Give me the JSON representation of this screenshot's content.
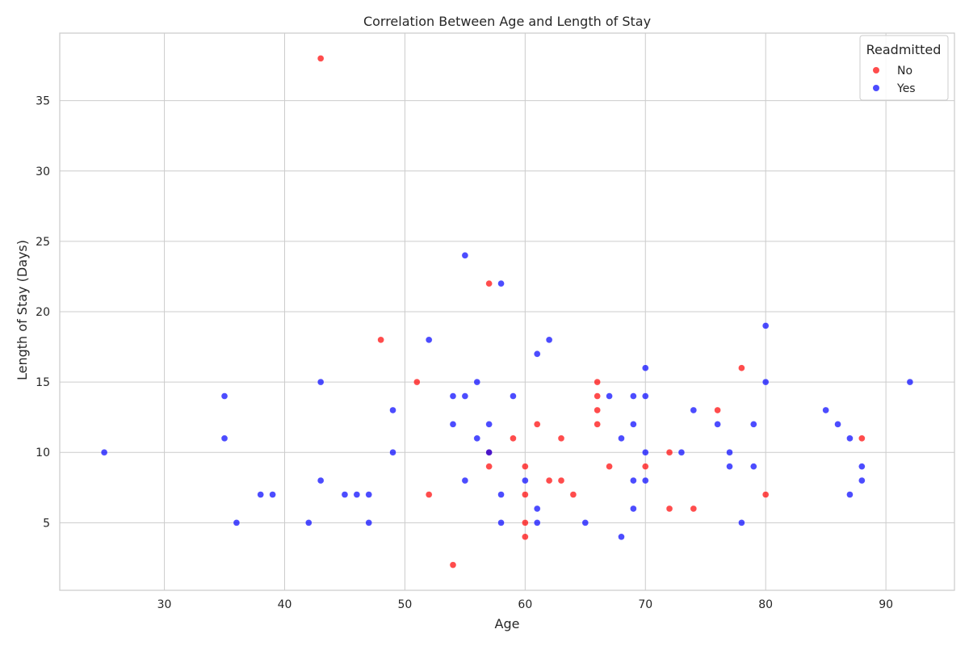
{
  "chart_data": {
    "type": "scatter",
    "title": "Correlation Between Age and Length of Stay",
    "xlabel": "Age",
    "ylabel": "Length of Stay (Days)",
    "xlim": [
      21.3,
      95.7
    ],
    "ylim": [
      0.2,
      39.8
    ],
    "xticks": [
      30,
      40,
      50,
      60,
      70,
      80,
      90
    ],
    "yticks": [
      5,
      10,
      15,
      20,
      25,
      30,
      35
    ],
    "grid": true,
    "legend": {
      "title": "Readmitted",
      "position": "top-right"
    },
    "series": [
      {
        "name": "No",
        "color": "#ff0000",
        "points": [
          [
            43,
            38
          ],
          [
            57,
            22
          ],
          [
            48,
            18
          ],
          [
            78,
            16
          ],
          [
            51,
            15
          ],
          [
            66,
            15
          ],
          [
            66,
            14
          ],
          [
            66,
            13
          ],
          [
            76,
            13
          ],
          [
            61,
            12
          ],
          [
            66,
            12
          ],
          [
            59,
            11
          ],
          [
            63,
            11
          ],
          [
            88,
            11
          ],
          [
            57,
            10
          ],
          [
            72,
            10
          ],
          [
            57,
            9
          ],
          [
            60,
            9
          ],
          [
            67,
            9
          ],
          [
            70,
            9
          ],
          [
            62,
            8
          ],
          [
            63,
            8
          ],
          [
            52,
            7
          ],
          [
            60,
            7
          ],
          [
            64,
            7
          ],
          [
            80,
            7
          ],
          [
            72,
            6
          ],
          [
            74,
            6
          ],
          [
            60,
            5
          ],
          [
            60,
            4
          ],
          [
            54,
            2
          ]
        ]
      },
      {
        "name": "Yes",
        "color": "#0000ff",
        "points": [
          [
            55,
            24
          ],
          [
            58,
            22
          ],
          [
            80,
            19
          ],
          [
            52,
            18
          ],
          [
            62,
            18
          ],
          [
            61,
            17
          ],
          [
            70,
            16
          ],
          [
            43,
            15
          ],
          [
            56,
            15
          ],
          [
            80,
            15
          ],
          [
            92,
            15
          ],
          [
            35,
            14
          ],
          [
            54,
            14
          ],
          [
            55,
            14
          ],
          [
            59,
            14
          ],
          [
            67,
            14
          ],
          [
            69,
            14
          ],
          [
            70,
            14
          ],
          [
            49,
            13
          ],
          [
            74,
            13
          ],
          [
            85,
            13
          ],
          [
            54,
            12
          ],
          [
            57,
            12
          ],
          [
            69,
            12
          ],
          [
            76,
            12
          ],
          [
            79,
            12
          ],
          [
            86,
            12
          ],
          [
            35,
            11
          ],
          [
            56,
            11
          ],
          [
            68,
            11
          ],
          [
            87,
            11
          ],
          [
            25,
            10
          ],
          [
            49,
            10
          ],
          [
            57,
            10
          ],
          [
            70,
            10
          ],
          [
            73,
            10
          ],
          [
            77,
            10
          ],
          [
            77,
            9
          ],
          [
            79,
            9
          ],
          [
            88,
            9
          ],
          [
            43,
            8
          ],
          [
            55,
            8
          ],
          [
            60,
            8
          ],
          [
            69,
            8
          ],
          [
            70,
            8
          ],
          [
            88,
            8
          ],
          [
            38,
            7
          ],
          [
            39,
            7
          ],
          [
            45,
            7
          ],
          [
            46,
            7
          ],
          [
            47,
            7
          ],
          [
            58,
            7
          ],
          [
            87,
            7
          ],
          [
            61,
            6
          ],
          [
            69,
            6
          ],
          [
            36,
            5
          ],
          [
            42,
            5
          ],
          [
            47,
            5
          ],
          [
            58,
            5
          ],
          [
            61,
            5
          ],
          [
            65,
            5
          ],
          [
            78,
            5
          ],
          [
            68,
            4
          ]
        ]
      }
    ]
  }
}
